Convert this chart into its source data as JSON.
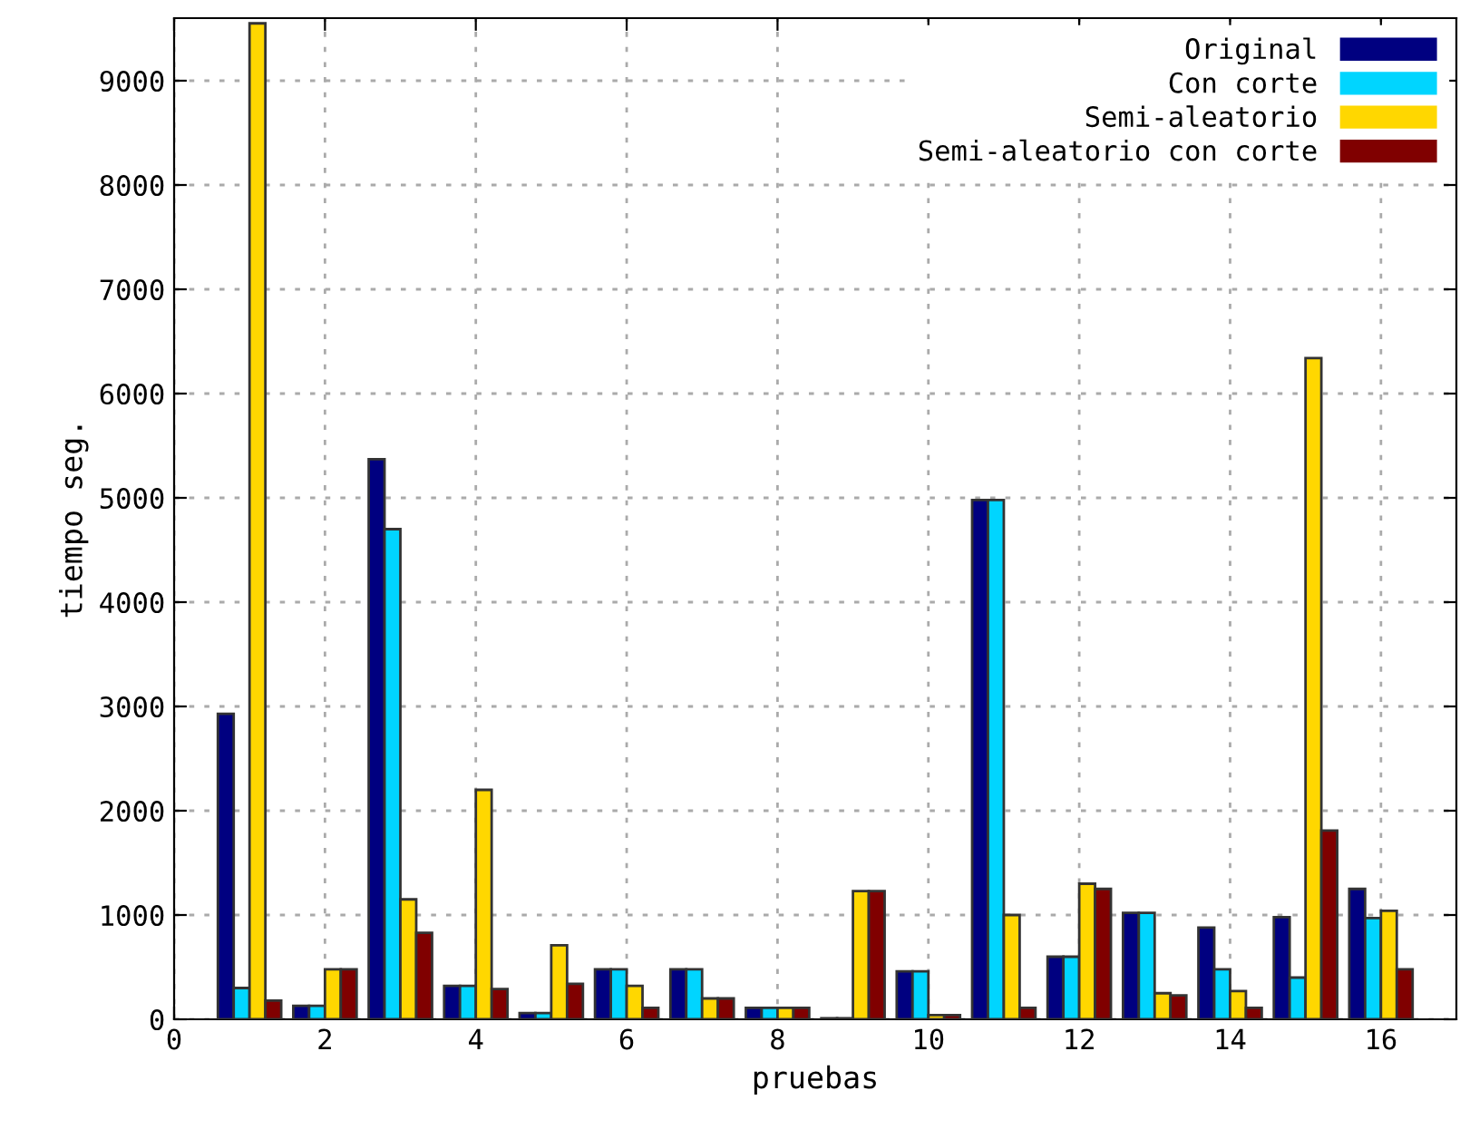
{
  "chart_data": {
    "type": "bar",
    "xlabel": "pruebas",
    "ylabel": "tiempo seg.",
    "x": [
      1,
      2,
      3,
      4,
      5,
      6,
      7,
      8,
      9,
      10,
      11,
      12,
      13,
      14,
      15,
      16
    ],
    "series": [
      {
        "name": "Original",
        "color": "#000080",
        "values": [
          2930,
          130,
          5370,
          320,
          60,
          480,
          480,
          110,
          10,
          460,
          4980,
          600,
          1020,
          880,
          980,
          1250
        ]
      },
      {
        "name": "Con corte",
        "color": "#00d5ff",
        "values": [
          300,
          130,
          4700,
          320,
          60,
          480,
          480,
          110,
          10,
          460,
          4980,
          600,
          1020,
          480,
          400,
          970
        ]
      },
      {
        "name": "Semi-aleatorio",
        "color": "#ffd700",
        "values": [
          9550,
          480,
          1150,
          2200,
          710,
          320,
          200,
          110,
          1230,
          40,
          1000,
          1300,
          250,
          270,
          6340,
          1040
        ]
      },
      {
        "name": "Semi-aleatorio con corte",
        "color": "#800000",
        "values": [
          180,
          480,
          830,
          290,
          340,
          110,
          200,
          110,
          1230,
          40,
          110,
          1250,
          230,
          110,
          1810,
          480
        ]
      }
    ],
    "xlim": [
      0,
      17
    ],
    "xticks": [
      0,
      2,
      4,
      6,
      8,
      10,
      12,
      14,
      16
    ],
    "ylim": [
      0,
      9600
    ],
    "yticks": [
      0,
      1000,
      2000,
      3000,
      4000,
      5000,
      6000,
      7000,
      8000,
      9000
    ],
    "grid": true,
    "legend": "top right"
  }
}
